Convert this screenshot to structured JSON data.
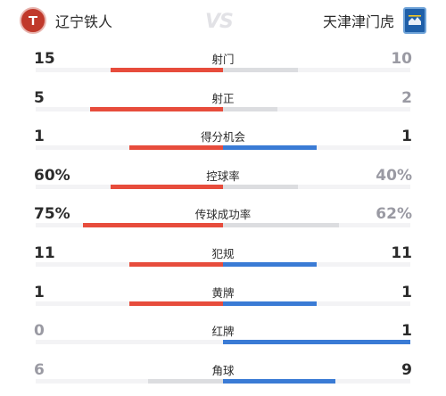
{
  "header": {
    "home_team": "辽宁铁人",
    "away_team": "天津津门虎",
    "vs": "VS"
  },
  "colors": {
    "home": "#e74c3c",
    "away": "#3a7bd5",
    "lose": "#dcdde0",
    "track": "#f3f3f5",
    "strong_text": "#2b2b2b",
    "weak_text": "#9a9aa3"
  },
  "stats": [
    {
      "label": "射门",
      "home": "15",
      "away": "10",
      "home_frac": 0.6,
      "away_frac": 0.4,
      "winner": "home"
    },
    {
      "label": "射正",
      "home": "5",
      "away": "2",
      "home_frac": 0.71,
      "away_frac": 0.29,
      "winner": "home"
    },
    {
      "label": "得分机会",
      "home": "1",
      "away": "1",
      "home_frac": 0.5,
      "away_frac": 0.5,
      "winner": "tie"
    },
    {
      "label": "控球率",
      "home": "60%",
      "away": "40%",
      "home_frac": 0.6,
      "away_frac": 0.4,
      "winner": "home"
    },
    {
      "label": "传球成功率",
      "home": "75%",
      "away": "62%",
      "home_frac": 0.75,
      "away_frac": 0.62,
      "winner": "home"
    },
    {
      "label": "犯规",
      "home": "11",
      "away": "11",
      "home_frac": 0.5,
      "away_frac": 0.5,
      "winner": "tie"
    },
    {
      "label": "黄牌",
      "home": "1",
      "away": "1",
      "home_frac": 0.5,
      "away_frac": 0.5,
      "winner": "tie"
    },
    {
      "label": "红牌",
      "home": "0",
      "away": "1",
      "home_frac": 0.0,
      "away_frac": 1.0,
      "winner": "away"
    },
    {
      "label": "角球",
      "home": "6",
      "away": "9",
      "home_frac": 0.4,
      "away_frac": 0.6,
      "winner": "away"
    }
  ]
}
